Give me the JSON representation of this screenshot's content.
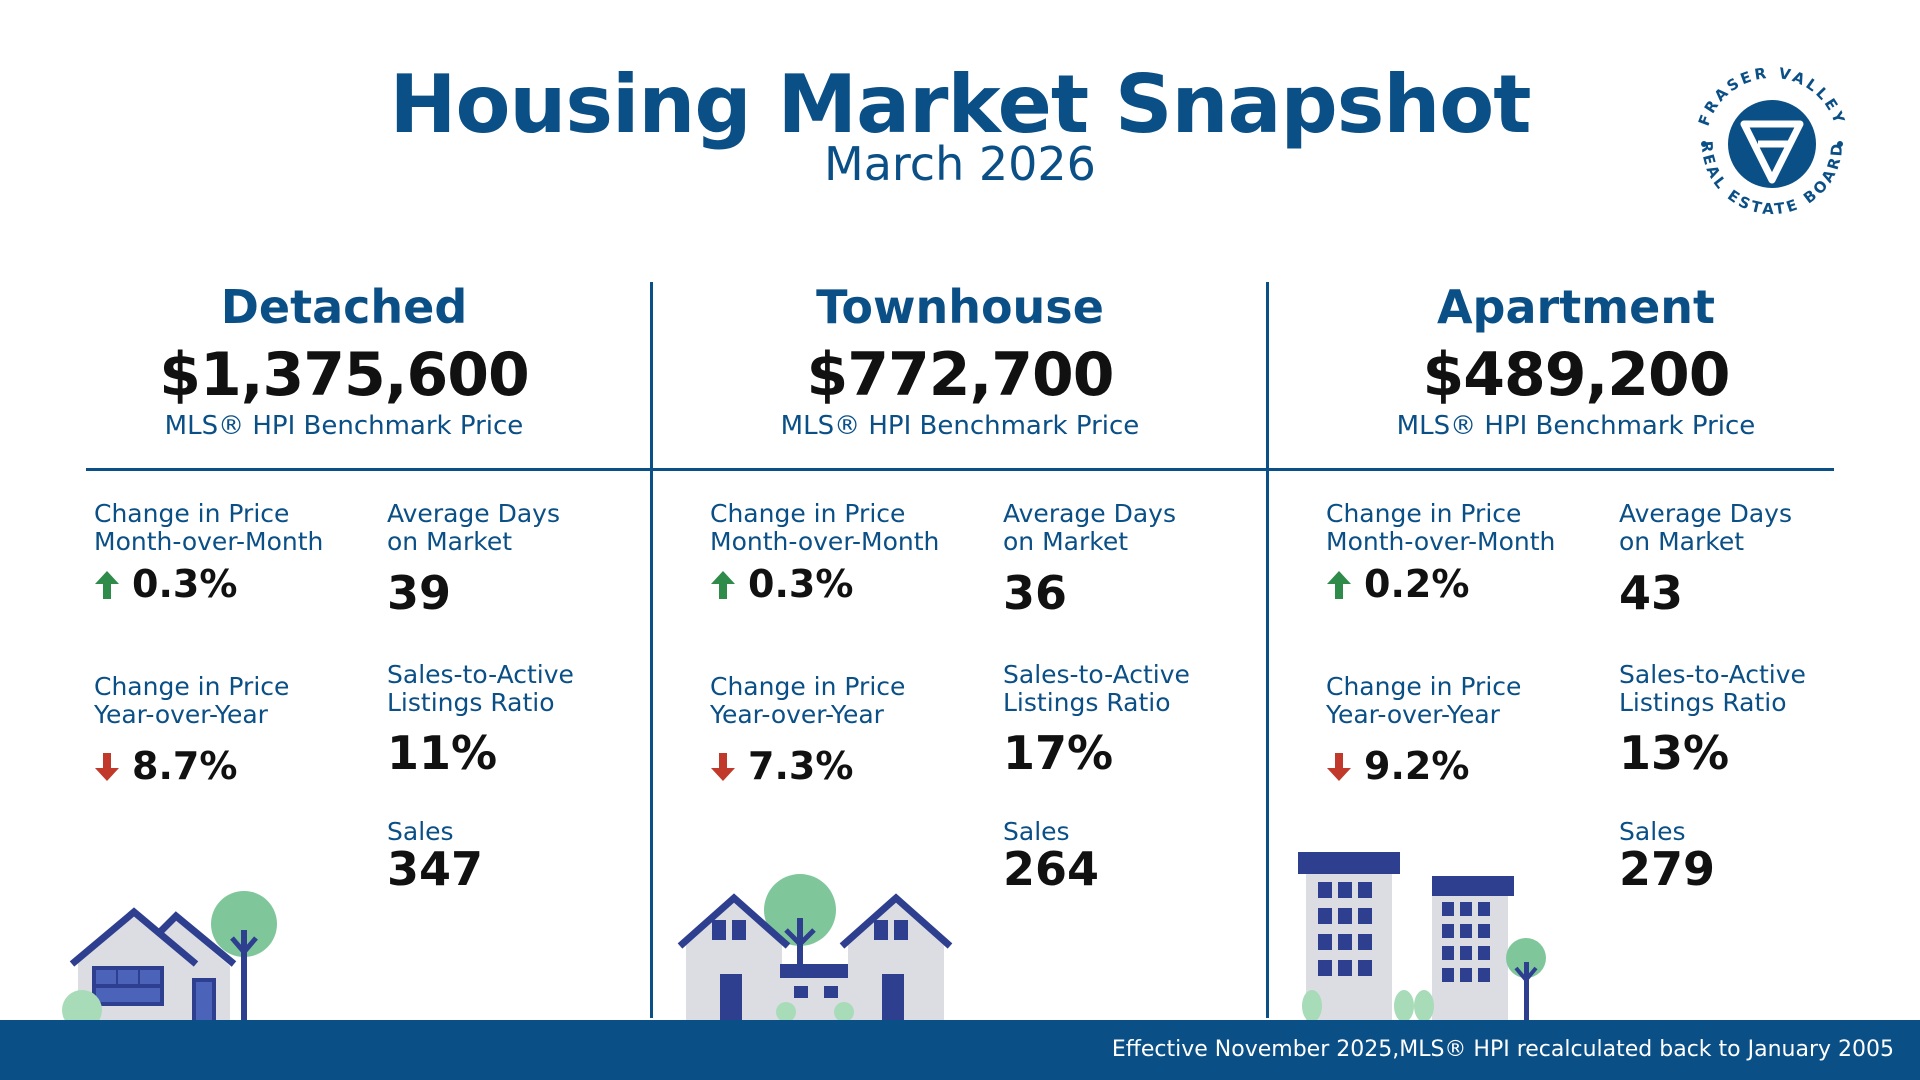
{
  "header": {
    "title": "Housing Market Snapshot",
    "subtitle": "March 2026"
  },
  "logo": {
    "top_text": "FRASER VALLEY",
    "bottom_text": "REAL ESTATE BOARD"
  },
  "columns": [
    {
      "title": "Detached",
      "price": "$1,375,600",
      "caption": "MLS® HPI Benchmark Price",
      "mom_label_1": "Change in Price",
      "mom_label_2": "Month-over-Month",
      "mom_value": "0.3%",
      "mom_direction": "up",
      "yoy_label_1": "Change in Price",
      "yoy_label_2": "Year-over-Year",
      "yoy_value": "8.7%",
      "yoy_direction": "down",
      "dom_label_1": "Average Days",
      "dom_label_2": "on Market",
      "dom_value": "39",
      "ratio_label_1": "Sales-to-Active",
      "ratio_label_2": "Listings Ratio",
      "ratio_value": "11%",
      "sales_label": "Sales",
      "sales_value": "347"
    },
    {
      "title": "Townhouse",
      "price": "$772,700",
      "caption": "MLS® HPI Benchmark Price",
      "mom_label_1": "Change in Price",
      "mom_label_2": "Month-over-Month",
      "mom_value": "0.3%",
      "mom_direction": "up",
      "yoy_label_1": "Change in Price",
      "yoy_label_2": "Year-over-Year",
      "yoy_value": "7.3%",
      "yoy_direction": "down",
      "dom_label_1": "Average Days",
      "dom_label_2": "on Market",
      "dom_value": "36",
      "ratio_label_1": "Sales-to-Active",
      "ratio_label_2": "Listings Ratio",
      "ratio_value": "17%",
      "sales_label": "Sales",
      "sales_value": "264"
    },
    {
      "title": "Apartment",
      "price": "$489,200",
      "caption": "MLS® HPI Benchmark Price",
      "mom_label_1": "Change in Price",
      "mom_label_2": "Month-over-Month",
      "mom_value": "0.2%",
      "mom_direction": "up",
      "yoy_label_1": "Change in Price",
      "yoy_label_2": "Year-over-Year",
      "yoy_value": "9.2%",
      "yoy_direction": "down",
      "dom_label_1": "Average Days",
      "dom_label_2": "on Market",
      "dom_value": "43",
      "ratio_label_1": "Sales-to-Active",
      "ratio_label_2": "Listings Ratio",
      "ratio_value": "13%",
      "sales_label": "Sales",
      "sales_value": "279"
    }
  ],
  "footer": {
    "note": "Effective November 2025,MLS® HPI recalculated back to January 2005"
  },
  "colors": {
    "brand_blue": "#0a4f86",
    "up_green": "#2e8b4a",
    "down_red": "#c0392b",
    "tree_green": "#7fc79a",
    "house_gray": "#dcdde3",
    "house_navy": "#2f3f8f"
  }
}
